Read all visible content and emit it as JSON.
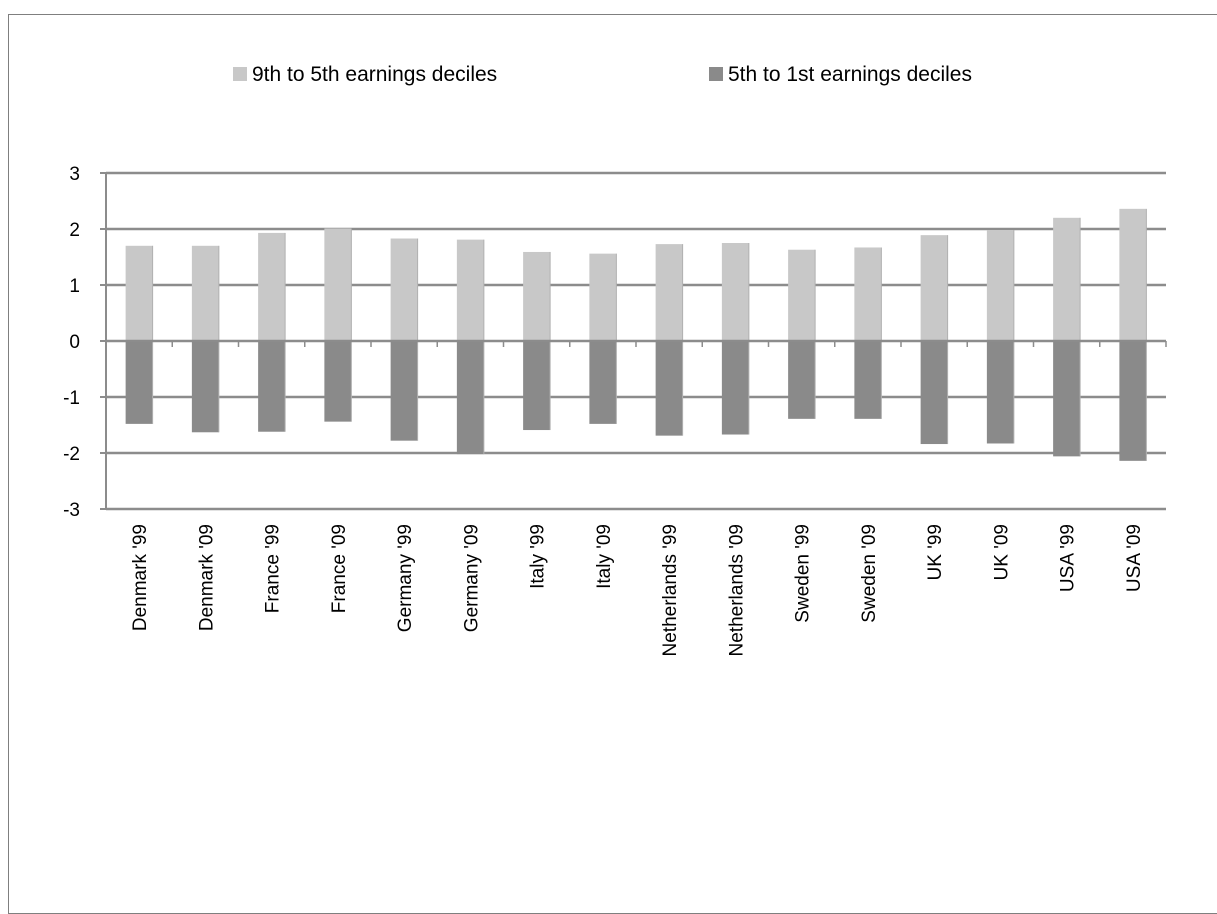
{
  "chart_data": {
    "type": "bar",
    "categories": [
      "Denmark '99",
      "Denmark '09",
      "France '99",
      "France '09",
      "Germany '99",
      "Germany '09",
      "Italy '99",
      "Italy '09",
      "Netherlands '99",
      "Netherlands '09",
      "Sweden '99",
      "Sweden '09",
      "UK '99",
      "UK '09",
      "USA '99",
      "USA '09"
    ],
    "series": [
      {
        "name": "9th to 5th earnings deciles",
        "color": "#c8c8c8",
        "values": [
          1.7,
          1.7,
          1.93,
          2.01,
          1.83,
          1.81,
          1.59,
          1.56,
          1.73,
          1.75,
          1.63,
          1.67,
          1.89,
          1.98,
          2.2,
          2.36
        ]
      },
      {
        "name": "5th to 1st earnings deciles",
        "color": "#8a8a8a",
        "values": [
          -1.48,
          -1.63,
          -1.62,
          -1.44,
          -1.78,
          -2.02,
          -1.59,
          -1.48,
          -1.69,
          -1.67,
          -1.39,
          -1.39,
          -1.84,
          -1.83,
          -2.06,
          -2.14
        ]
      }
    ],
    "ylim": [
      -3,
      3
    ],
    "yticks": [
      "3",
      "2",
      "1",
      "0",
      "-1",
      "-2",
      "-3"
    ],
    "grid": true,
    "legend_position": "top"
  }
}
